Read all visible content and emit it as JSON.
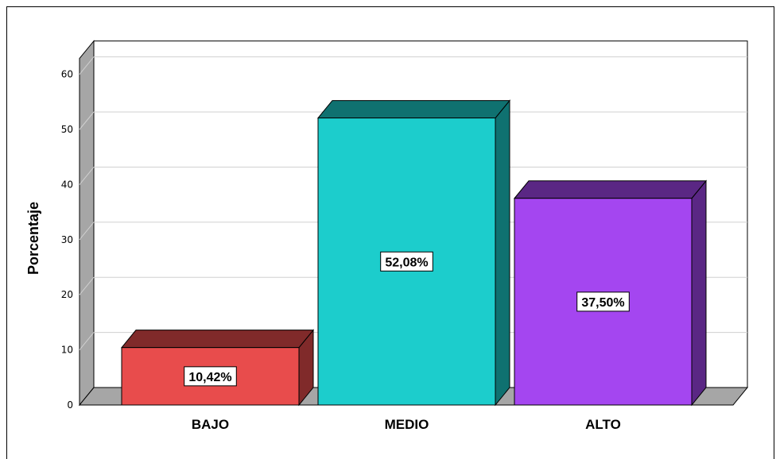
{
  "chart_data": {
    "type": "bar",
    "style": "3d",
    "categories": [
      "BAJO",
      "MEDIO",
      "ALTO"
    ],
    "values": [
      10.42,
      52.08,
      37.5
    ],
    "data_labels": [
      "10,42%",
      "52,08%",
      "37,50%"
    ],
    "colors": [
      "#e84c4c",
      "#1ccdcc",
      "#a446f0"
    ],
    "ylabel": "Porcentaje",
    "xlabel": "",
    "ylim": [
      0,
      60
    ],
    "yticks": [
      0,
      10,
      20,
      30,
      40,
      50,
      60
    ],
    "grid": true
  }
}
